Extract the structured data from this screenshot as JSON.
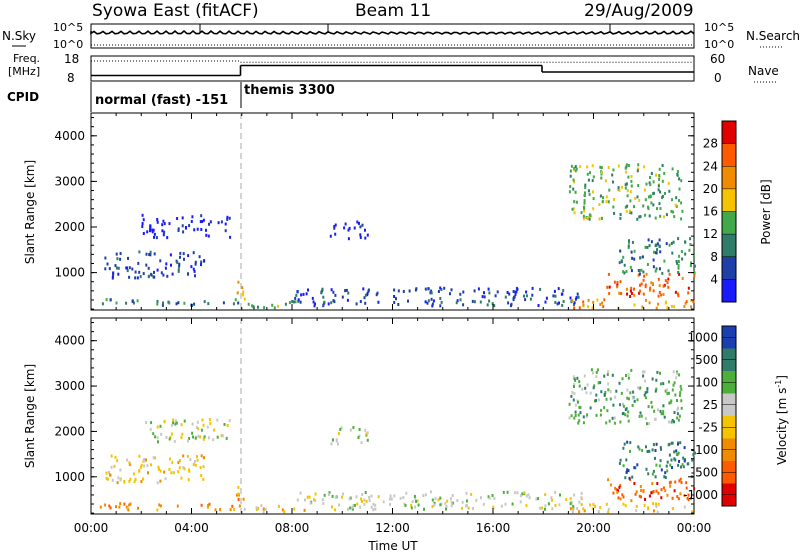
{
  "header": {
    "station": "Syowa East (fitACF)",
    "beam": "Beam 11",
    "date": "29/Aug/2009"
  },
  "noise_panel": {
    "left_label": "N.Sky",
    "right_label": "N.Search",
    "left_ticks": [
      "10^5",
      "10^0"
    ],
    "right_ticks": [
      "10^5",
      "10^0"
    ]
  },
  "freq_panel": {
    "left_label_line1": "Freq.",
    "left_label_line2": "[MHz]",
    "left_ticks": [
      "18",
      "8"
    ],
    "right_ticks": [
      "60",
      "0"
    ],
    "right_label": "Nave",
    "freq_segments": [
      {
        "from_h": 0,
        "to_h": 5.95,
        "value": 10.2
      },
      {
        "from_h": 5.95,
        "to_h": 17.95,
        "value": 14.2
      },
      {
        "from_h": 17.95,
        "to_h": 24,
        "value": 11.6
      }
    ],
    "nave_segments": [
      {
        "from_h": 0,
        "to_h": 5.95,
        "value": 48
      },
      {
        "from_h": 5.95,
        "to_h": 24,
        "value": 45
      }
    ]
  },
  "cpid_panel": {
    "label": "CPID",
    "modes": [
      {
        "name": "normal (fast) -151",
        "start_h": 0
      },
      {
        "name": "themis 3300",
        "start_h": 5.95
      }
    ]
  },
  "chart_data": [
    {
      "type": "heatmap",
      "name": "Power",
      "xlabel": "Time UT",
      "ylabel": "Slant Range [km]",
      "xlim": [
        "00:00",
        "24:00"
      ],
      "ylim": [
        180,
        4500
      ],
      "yticks": [
        "1000",
        "2000",
        "3000",
        "4000"
      ],
      "colorbar": {
        "label": "Power [dB]",
        "ticks": [
          "4",
          "8",
          "12",
          "16",
          "20",
          "24",
          "28"
        ],
        "colors": [
          "#1a1aff",
          "#1f3fa8",
          "#2f7c6a",
          "#42a94a",
          "#f5c300",
          "#f08b00",
          "#ff5a00",
          "#e00000"
        ]
      },
      "mode_change_h": 5.95,
      "regions": [
        {
          "t0": 0.3,
          "t1": 5.9,
          "r0": 300,
          "r1": 450,
          "level": 2,
          "desc": "near-range echoes"
        },
        {
          "t0": 0.5,
          "t1": 4.5,
          "r0": 900,
          "r1": 1500,
          "level": 1
        },
        {
          "t0": 2.0,
          "t1": 5.5,
          "r0": 1800,
          "r1": 2300,
          "level": 0
        },
        {
          "t0": 5.7,
          "t1": 6.1,
          "r0": 450,
          "r1": 900,
          "level": 4
        },
        {
          "t0": 6.0,
          "t1": 8.5,
          "r0": 250,
          "r1": 400,
          "level": 3
        },
        {
          "t0": 9.5,
          "t1": 11.0,
          "r0": 1750,
          "r1": 2150,
          "level": 0
        },
        {
          "t0": 8.0,
          "t1": 19.5,
          "r0": 300,
          "r1": 700,
          "level": 1
        },
        {
          "t0": 19.0,
          "t1": 24.0,
          "r0": 250,
          "r1": 450,
          "level": 5
        },
        {
          "t0": 20.5,
          "t1": 24.0,
          "r0": 500,
          "r1": 1000,
          "level": 6
        },
        {
          "t0": 21.0,
          "t1": 24.0,
          "r0": 1000,
          "r1": 1800,
          "level": 2
        },
        {
          "t0": 19.0,
          "t1": 23.5,
          "r0": 2200,
          "r1": 3400,
          "level": 3
        }
      ]
    },
    {
      "type": "heatmap",
      "name": "Velocity",
      "xlabel": "Time UT",
      "ylabel": "Slant Range [km]",
      "xticks": [
        "00:00",
        "04:00",
        "08:00",
        "12:00",
        "16:00",
        "20:00",
        "00:00"
      ],
      "yticks": [
        "1000",
        "2000",
        "3000",
        "4000"
      ],
      "ylim": [
        180,
        4500
      ],
      "colorbar": {
        "label": "Velocity [m s^-1]",
        "ticks": [
          "1000",
          "500",
          "100",
          "25",
          "-25",
          "-100",
          "-500",
          "-1000"
        ],
        "colors": [
          "#1a3fb0",
          "#2f7c6a",
          "#4caf3a",
          "#c8c8c8",
          "#f5c300",
          "#f08b00",
          "#ff5a00",
          "#e00000"
        ]
      },
      "regions": [
        {
          "t0": 0.3,
          "t1": 5.9,
          "r0": 300,
          "r1": 450,
          "level": 5
        },
        {
          "t0": 0.5,
          "t1": 4.5,
          "r0": 900,
          "r1": 1500,
          "level": 4
        },
        {
          "t0": 2.0,
          "t1": 5.5,
          "r0": 1800,
          "r1": 2300,
          "level": 3
        },
        {
          "t0": 5.7,
          "t1": 6.1,
          "r0": 450,
          "r1": 900,
          "level": 5
        },
        {
          "t0": 6.0,
          "t1": 8.5,
          "r0": 250,
          "r1": 400,
          "level": 4
        },
        {
          "t0": 9.5,
          "t1": 11.0,
          "r0": 1750,
          "r1": 2150,
          "level": 3
        },
        {
          "t0": 8.0,
          "t1": 19.5,
          "r0": 300,
          "r1": 700,
          "level": 3
        },
        {
          "t0": 19.0,
          "t1": 24.0,
          "r0": 250,
          "r1": 450,
          "level": 4
        },
        {
          "t0": 20.5,
          "t1": 24.0,
          "r0": 500,
          "r1": 1000,
          "level": 6
        },
        {
          "t0": 21.0,
          "t1": 24.0,
          "r0": 1000,
          "r1": 1800,
          "level": 1
        },
        {
          "t0": 19.0,
          "t1": 23.5,
          "r0": 2200,
          "r1": 3400,
          "level": 2
        }
      ]
    }
  ]
}
